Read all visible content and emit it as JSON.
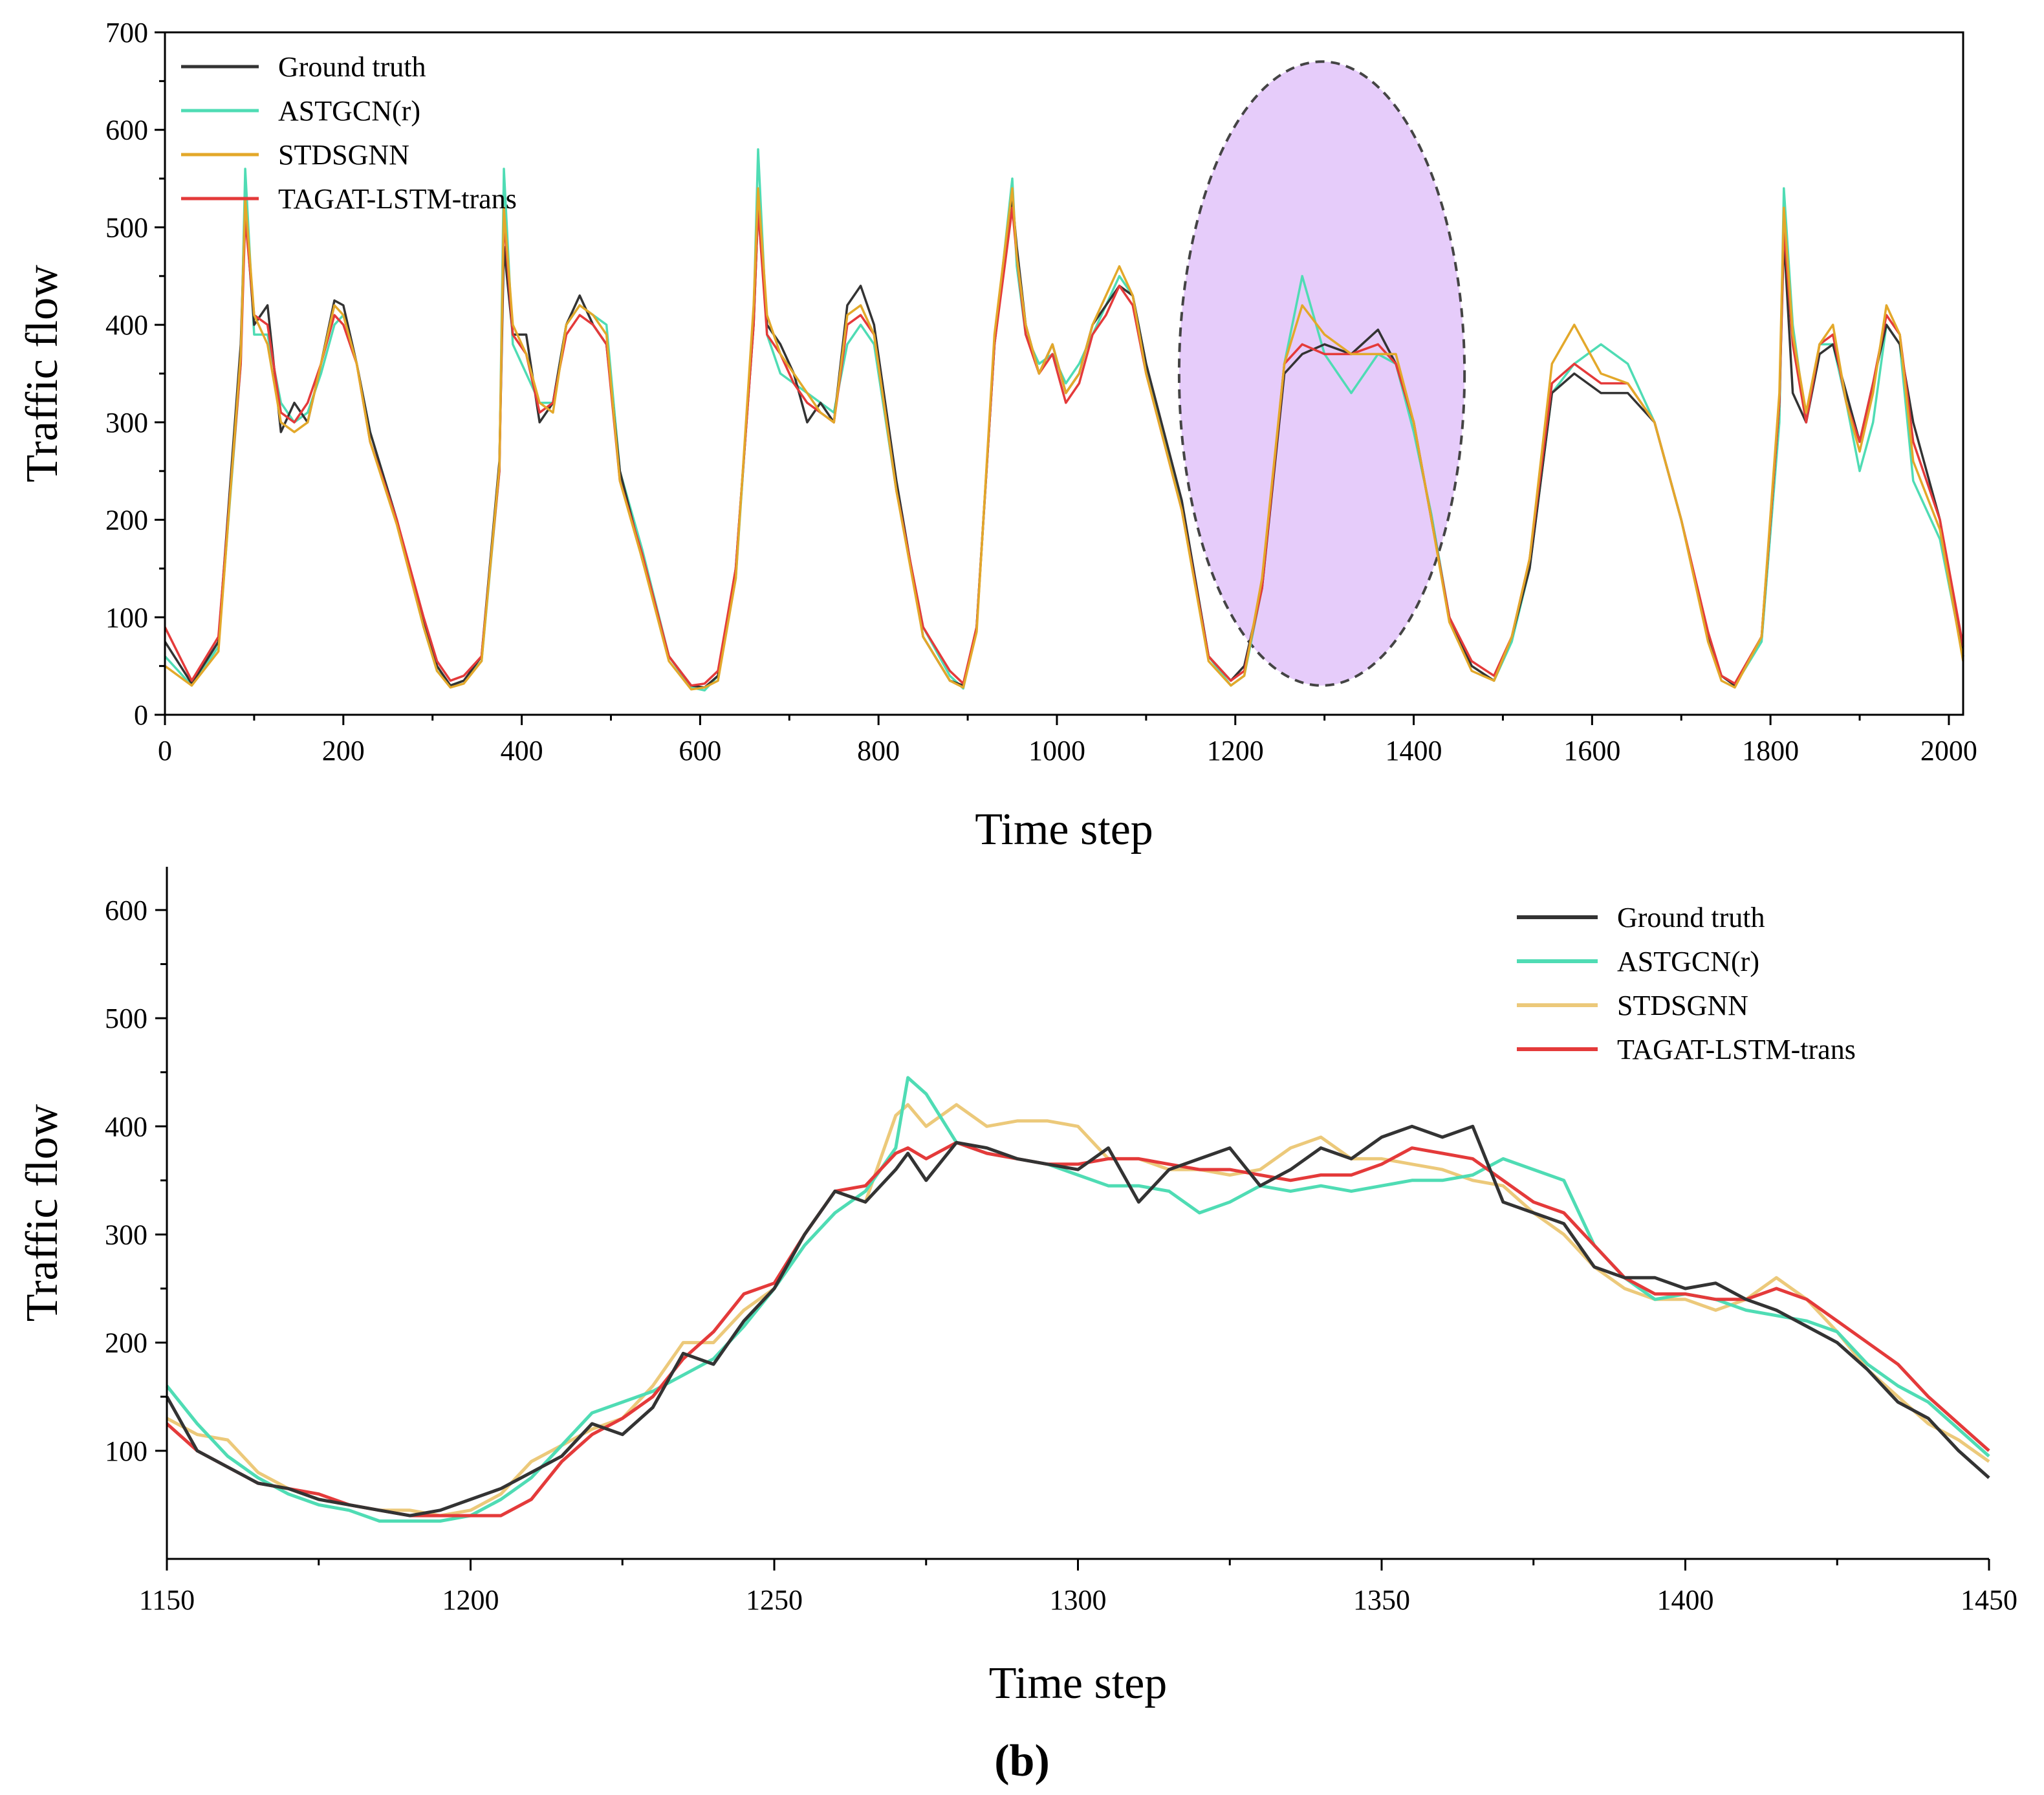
{
  "caption": "(b)",
  "colors": {
    "ground_truth": "#333333",
    "astgcn": "#4fdcb4",
    "stdsgnn_top": "#e3a82a",
    "stdsgnn_bottom": "#ecc97a",
    "tagat": "#e43a3a",
    "highlight_fill": "#e6ccfa",
    "highlight_stroke": "#444444"
  },
  "chart_data": [
    {
      "type": "line",
      "xlabel": "Time step",
      "ylabel": "Traffic flow",
      "xlim": [
        0,
        2016
      ],
      "ylim": [
        0,
        700
      ],
      "x_ticks": [
        0,
        200,
        400,
        600,
        800,
        1000,
        1200,
        1400,
        1600,
        1800,
        2000
      ],
      "y_ticks": [
        0,
        100,
        200,
        300,
        400,
        500,
        600,
        700
      ],
      "grid": false,
      "legend_position": "top-left",
      "highlight": {
        "shape": "ellipse",
        "center_x": 1297,
        "center_y": 350,
        "half_width_x": 160,
        "half_height_y": 320
      },
      "x": [
        0,
        30,
        60,
        85,
        90,
        100,
        115,
        130,
        145,
        160,
        175,
        190,
        200,
        215,
        230,
        260,
        290,
        305,
        320,
        335,
        355,
        375,
        380,
        390,
        405,
        420,
        435,
        450,
        465,
        480,
        495,
        510,
        535,
        565,
        590,
        605,
        620,
        640,
        660,
        665,
        675,
        690,
        705,
        720,
        735,
        750,
        765,
        780,
        795,
        820,
        850,
        880,
        895,
        910,
        930,
        950,
        955,
        965,
        980,
        995,
        1010,
        1025,
        1040,
        1055,
        1070,
        1085,
        1100,
        1140,
        1170,
        1195,
        1210,
        1230,
        1255,
        1275,
        1300,
        1330,
        1360,
        1380,
        1400,
        1420,
        1440,
        1465,
        1490,
        1510,
        1530,
        1555,
        1580,
        1610,
        1640,
        1670,
        1700,
        1730,
        1745,
        1760,
        1790,
        1810,
        1815,
        1825,
        1840,
        1855,
        1870,
        1885,
        1900,
        1915,
        1930,
        1945,
        1960,
        1990,
        2016
      ],
      "series": [
        {
          "name": "Ground truth",
          "values": [
            75,
            32,
            75,
            380,
            520,
            400,
            420,
            290,
            320,
            300,
            360,
            425,
            420,
            360,
            290,
            200,
            95,
            50,
            30,
            35,
            60,
            260,
            480,
            390,
            390,
            300,
            320,
            400,
            430,
            400,
            380,
            250,
            160,
            60,
            30,
            28,
            40,
            150,
            400,
            520,
            400,
            380,
            350,
            300,
            320,
            300,
            420,
            440,
            400,
            240,
            80,
            35,
            30,
            90,
            380,
            530,
            480,
            400,
            350,
            380,
            330,
            350,
            400,
            420,
            440,
            430,
            360,
            220,
            60,
            35,
            50,
            130,
            350,
            370,
            380,
            370,
            395,
            360,
            300,
            200,
            100,
            50,
            35,
            80,
            150,
            330,
            350,
            330,
            330,
            300,
            200,
            80,
            40,
            30,
            80,
            320,
            490,
            330,
            300,
            370,
            380,
            330,
            280,
            340,
            400,
            380,
            300,
            200,
            60
          ]
        },
        {
          "name": "ASTGCN(r)",
          "values": [
            60,
            30,
            70,
            360,
            560,
            390,
            390,
            320,
            300,
            310,
            350,
            400,
            410,
            360,
            290,
            200,
            90,
            45,
            30,
            35,
            55,
            250,
            560,
            380,
            350,
            320,
            320,
            400,
            420,
            410,
            400,
            250,
            170,
            60,
            28,
            25,
            40,
            140,
            410,
            580,
            390,
            350,
            340,
            330,
            320,
            310,
            380,
            400,
            380,
            230,
            90,
            40,
            27,
            90,
            380,
            550,
            460,
            390,
            360,
            370,
            340,
            360,
            390,
            420,
            450,
            430,
            360,
            215,
            60,
            30,
            40,
            130,
            360,
            450,
            370,
            330,
            370,
            360,
            290,
            205,
            100,
            50,
            35,
            75,
            150,
            330,
            360,
            380,
            360,
            300,
            200,
            80,
            40,
            30,
            75,
            300,
            540,
            400,
            300,
            380,
            380,
            320,
            250,
            300,
            400,
            380,
            240,
            180,
            60
          ]
        },
        {
          "name": "STDSGNN",
          "values": [
            50,
            30,
            65,
            370,
            530,
            410,
            380,
            300,
            290,
            300,
            360,
            420,
            410,
            360,
            280,
            195,
            90,
            45,
            28,
            32,
            55,
            255,
            520,
            400,
            370,
            320,
            310,
            400,
            420,
            410,
            390,
            240,
            160,
            55,
            26,
            28,
            35,
            140,
            420,
            540,
            410,
            370,
            350,
            330,
            310,
            300,
            410,
            420,
            390,
            230,
            80,
            35,
            28,
            85,
            390,
            540,
            470,
            400,
            350,
            380,
            330,
            350,
            400,
            430,
            460,
            430,
            350,
            210,
            55,
            30,
            40,
            140,
            360,
            420,
            390,
            370,
            370,
            370,
            300,
            200,
            95,
            45,
            35,
            80,
            160,
            360,
            400,
            350,
            340,
            300,
            200,
            75,
            35,
            28,
            80,
            330,
            520,
            390,
            310,
            380,
            400,
            320,
            270,
            330,
            420,
            390,
            260,
            190,
            55
          ]
        },
        {
          "name": "TAGAT-LSTM-trans",
          "values": [
            90,
            35,
            80,
            360,
            510,
            410,
            400,
            310,
            300,
            320,
            360,
            410,
            400,
            360,
            280,
            200,
            100,
            55,
            35,
            40,
            60,
            250,
            510,
            390,
            370,
            310,
            320,
            390,
            410,
            400,
            380,
            240,
            165,
            60,
            30,
            32,
            45,
            150,
            400,
            520,
            390,
            370,
            340,
            320,
            310,
            300,
            400,
            410,
            390,
            230,
            90,
            45,
            32,
            90,
            380,
            520,
            470,
            390,
            350,
            370,
            320,
            340,
            390,
            410,
            440,
            420,
            350,
            210,
            60,
            35,
            45,
            130,
            360,
            380,
            370,
            370,
            380,
            360,
            300,
            200,
            100,
            55,
            40,
            80,
            160,
            340,
            360,
            340,
            340,
            300,
            200,
            85,
            40,
            32,
            80,
            320,
            500,
            380,
            300,
            380,
            390,
            320,
            280,
            340,
            410,
            390,
            280,
            200,
            70
          ]
        }
      ]
    },
    {
      "type": "line",
      "xlabel": "Time step",
      "ylabel": "Traffic flow",
      "xlim": [
        1150,
        1450
      ],
      "ylim": [
        0,
        640
      ],
      "x_ticks": [
        1150,
        1200,
        1250,
        1300,
        1350,
        1400,
        1450
      ],
      "y_ticks": [
        100,
        200,
        300,
        400,
        500,
        600
      ],
      "grid": false,
      "legend_position": "top-right",
      "x": [
        1150,
        1155,
        1160,
        1165,
        1170,
        1175,
        1180,
        1185,
        1190,
        1195,
        1200,
        1205,
        1210,
        1215,
        1220,
        1225,
        1230,
        1235,
        1240,
        1245,
        1250,
        1255,
        1260,
        1265,
        1270,
        1272,
        1275,
        1280,
        1285,
        1290,
        1295,
        1300,
        1305,
        1310,
        1315,
        1320,
        1325,
        1330,
        1335,
        1340,
        1345,
        1350,
        1355,
        1360,
        1365,
        1370,
        1375,
        1380,
        1385,
        1390,
        1395,
        1400,
        1405,
        1410,
        1415,
        1420,
        1425,
        1430,
        1435,
        1440,
        1445,
        1450
      ],
      "series": [
        {
          "name": "Ground truth",
          "values": [
            150,
            100,
            85,
            70,
            65,
            55,
            50,
            45,
            40,
            45,
            55,
            65,
            80,
            95,
            125,
            115,
            140,
            190,
            180,
            220,
            250,
            300,
            340,
            330,
            360,
            375,
            350,
            385,
            380,
            370,
            365,
            360,
            380,
            330,
            360,
            370,
            380,
            345,
            360,
            380,
            370,
            390,
            400,
            390,
            400,
            330,
            320,
            310,
            270,
            260,
            260,
            250,
            255,
            240,
            230,
            215,
            200,
            175,
            145,
            130,
            100,
            75
          ]
        },
        {
          "name": "ASTGCN(r)",
          "values": [
            160,
            125,
            95,
            75,
            60,
            50,
            45,
            35,
            35,
            35,
            40,
            55,
            75,
            105,
            135,
            145,
            155,
            170,
            185,
            215,
            250,
            290,
            320,
            340,
            380,
            445,
            430,
            385,
            375,
            370,
            365,
            355,
            345,
            345,
            340,
            320,
            330,
            345,
            340,
            345,
            340,
            345,
            350,
            350,
            355,
            370,
            360,
            350,
            290,
            260,
            240,
            245,
            240,
            230,
            225,
            220,
            210,
            180,
            160,
            145,
            120,
            95
          ]
        },
        {
          "name": "STDSGNN",
          "values": [
            130,
            115,
            110,
            80,
            65,
            55,
            50,
            45,
            45,
            40,
            45,
            60,
            90,
            105,
            120,
            130,
            160,
            200,
            200,
            230,
            250,
            300,
            340,
            330,
            410,
            420,
            400,
            420,
            400,
            405,
            405,
            400,
            370,
            370,
            360,
            360,
            355,
            360,
            380,
            390,
            370,
            370,
            365,
            360,
            350,
            345,
            320,
            300,
            270,
            250,
            240,
            240,
            230,
            240,
            260,
            240,
            210,
            175,
            150,
            125,
            110,
            90
          ]
        },
        {
          "name": "TAGAT-LSTM-trans",
          "values": [
            125,
            100,
            85,
            70,
            65,
            60,
            50,
            45,
            40,
            40,
            40,
            40,
            55,
            90,
            115,
            130,
            150,
            185,
            210,
            245,
            255,
            300,
            340,
            345,
            375,
            380,
            370,
            385,
            375,
            370,
            365,
            365,
            370,
            370,
            365,
            360,
            360,
            355,
            350,
            355,
            355,
            365,
            380,
            375,
            370,
            350,
            330,
            320,
            290,
            260,
            245,
            245,
            240,
            240,
            250,
            240,
            220,
            200,
            180,
            150,
            125,
            100
          ]
        }
      ]
    }
  ]
}
